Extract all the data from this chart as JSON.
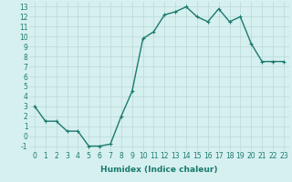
{
  "x": [
    0,
    1,
    2,
    3,
    4,
    5,
    6,
    7,
    8,
    9,
    10,
    11,
    12,
    13,
    14,
    15,
    16,
    17,
    18,
    19,
    20,
    21,
    22,
    23
  ],
  "y": [
    3.0,
    1.5,
    1.5,
    0.5,
    0.5,
    -1.0,
    -1.0,
    -0.8,
    2.0,
    4.5,
    9.8,
    10.5,
    12.2,
    12.5,
    13.0,
    12.0,
    11.5,
    12.8,
    11.5,
    12.0,
    9.3,
    7.5,
    7.5,
    7.5
  ],
  "line_color": "#1a7a6e",
  "marker": "+",
  "marker_size": 3,
  "bg_color": "#d6f0ef",
  "grid_color": "#b8d8d6",
  "xlabel": "Humidex (Indice chaleur)",
  "xlim": [
    -0.5,
    23.5
  ],
  "ylim": [
    -1.5,
    13.5
  ],
  "xticks": [
    0,
    1,
    2,
    3,
    4,
    5,
    6,
    7,
    8,
    9,
    10,
    11,
    12,
    13,
    14,
    15,
    16,
    17,
    18,
    19,
    20,
    21,
    22,
    23
  ],
  "yticks": [
    -1,
    0,
    1,
    2,
    3,
    4,
    5,
    6,
    7,
    8,
    9,
    10,
    11,
    12,
    13
  ],
  "tick_label_fontsize": 5.5,
  "xlabel_fontsize": 6.5,
  "line_width": 1.0,
  "marker_edge_width": 0.8
}
